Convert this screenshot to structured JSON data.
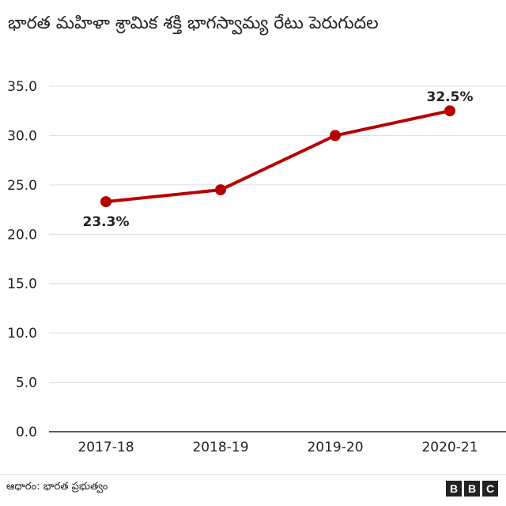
{
  "title": "భారత మహిళా శ్రామిక శక్తి భాగస్వామ్య రేటు పెరుగుదల",
  "source": "ఆధారం: భారత ప్రభుత్వం",
  "logo_text": "BBC",
  "logo_letters": [
    "B",
    "B",
    "C"
  ],
  "colors": {
    "line": "#b80000",
    "grid": "#dcdcdc",
    "axis": "#222222",
    "text": "#222222"
  },
  "chart_data": {
    "type": "line",
    "title": "భారత మహిళా శ్రామిక శక్తి భాగస్వామ్య రేటు పెరుగుదల",
    "categories": [
      "2017-18",
      "2018-19",
      "2019-20",
      "2020-21"
    ],
    "series": [
      {
        "values": [
          23.3,
          24.5,
          30.0,
          32.5
        ]
      }
    ],
    "data_labels": [
      {
        "index": 0,
        "text": "23.3%",
        "placement": "below"
      },
      {
        "index": 3,
        "text": "32.5%",
        "placement": "above"
      }
    ],
    "ylim": [
      0,
      35
    ],
    "yticks": [
      0,
      5,
      10,
      15,
      20,
      25,
      30,
      35
    ],
    "ytick_labels": [
      "0.0",
      "5.0",
      "10.0",
      "15.0",
      "20.0",
      "25.0",
      "30.0",
      "35.0"
    ],
    "xlabel": "",
    "ylabel": "",
    "grid": true,
    "legend": "none"
  }
}
